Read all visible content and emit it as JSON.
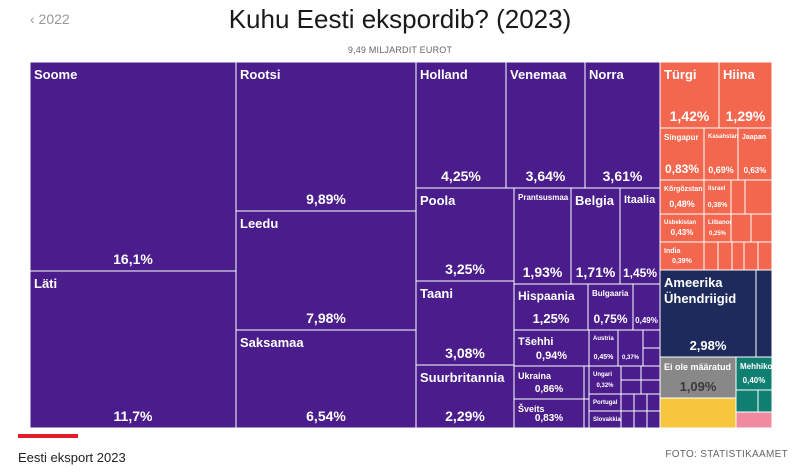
{
  "nav": {
    "prev_label": "‹ 2022"
  },
  "chart_data": {
    "type": "treemap",
    "title": "Kuhu Eesti ekspordib? (2023)",
    "subtitle": "9,49 MILJARDIT EUROT",
    "unit": "%",
    "colors": {
      "eu": "#4a1c8c",
      "other": "#f4674f",
      "usa": "#1e2a5c",
      "unknown": "#888888",
      "mexico": "#0f7f72",
      "yellow": "#f7c63d",
      "pink": "#f08aa0"
    },
    "items": [
      {
        "name": "Soome",
        "value": "16,1%",
        "group": "eu"
      },
      {
        "name": "Läti",
        "value": "11,7%",
        "group": "eu"
      },
      {
        "name": "Rootsi",
        "value": "9,89%",
        "group": "eu"
      },
      {
        "name": "Leedu",
        "value": "7,98%",
        "group": "eu"
      },
      {
        "name": "Saksamaa",
        "value": "6,54%",
        "group": "eu"
      },
      {
        "name": "Holland",
        "value": "4,25%",
        "group": "eu"
      },
      {
        "name": "Venemaa",
        "value": "3,64%",
        "group": "eu"
      },
      {
        "name": "Norra",
        "value": "3,61%",
        "group": "eu"
      },
      {
        "name": "Poola",
        "value": "3,25%",
        "group": "eu"
      },
      {
        "name": "Taani",
        "value": "3,08%",
        "group": "eu"
      },
      {
        "name": "Suurbritannia",
        "value": "2,29%",
        "group": "eu"
      },
      {
        "name": "Prantsusmaa",
        "value": "1,93%",
        "group": "eu"
      },
      {
        "name": "Belgia",
        "value": "1,71%",
        "group": "eu"
      },
      {
        "name": "Itaalia",
        "value": "1,45%",
        "group": "eu"
      },
      {
        "name": "Hispaania",
        "value": "1,25%",
        "group": "eu"
      },
      {
        "name": "Bulgaaria",
        "value": "0,75%",
        "group": "eu"
      },
      {
        "name": "",
        "value": "0,49%",
        "group": "eu"
      },
      {
        "name": "Tšehhi",
        "value": "0,94%",
        "group": "eu"
      },
      {
        "name": "Austria",
        "value": "0,45%",
        "group": "eu"
      },
      {
        "name": "",
        "value": "0,37%",
        "group": "eu"
      },
      {
        "name": "Ukraina",
        "value": "0,86%",
        "group": "eu"
      },
      {
        "name": "Ungari",
        "value": "0,32%",
        "group": "eu"
      },
      {
        "name": "Portugal",
        "value": "",
        "group": "eu"
      },
      {
        "name": "Šveits",
        "value": "0,83%",
        "group": "eu"
      },
      {
        "name": "Slovakkia",
        "value": "",
        "group": "eu"
      },
      {
        "name": "Türgi",
        "value": "1,42%",
        "group": "other"
      },
      {
        "name": "Hiina",
        "value": "1,29%",
        "group": "other"
      },
      {
        "name": "Singapur",
        "value": "0,83%",
        "group": "other"
      },
      {
        "name": "Kasahstan",
        "value": "0,69%",
        "group": "other"
      },
      {
        "name": "Jaapan",
        "value": "0,63%",
        "group": "other"
      },
      {
        "name": "Kõrgõzstan",
        "value": "0,48%",
        "group": "other"
      },
      {
        "name": "Iisrael",
        "value": "0,38%",
        "group": "other"
      },
      {
        "name": "Usbekistan",
        "value": "0,43%",
        "group": "other"
      },
      {
        "name": "Liibanon",
        "value": "0,25%",
        "group": "other"
      },
      {
        "name": "India",
        "value": "0,39%",
        "group": "other"
      },
      {
        "name": "Ameerika Ühendriigid",
        "value": "2,98%",
        "group": "usa"
      },
      {
        "name": "Ei ole määratud",
        "value": "1,09%",
        "group": "unknown"
      },
      {
        "name": "Mehhiko",
        "value": "0,40%",
        "group": "mexico"
      }
    ]
  },
  "footer": {
    "caption": "Eesti eksport 2023",
    "source": "FOTO: STATISTIKAAMET"
  }
}
